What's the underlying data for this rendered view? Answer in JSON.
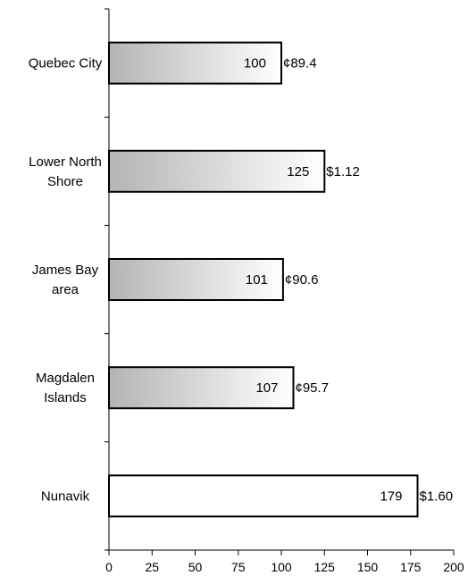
{
  "chart_data": {
    "type": "bar",
    "orientation": "horizontal",
    "categories": [
      "Quebec City",
      "Lower North Shore",
      "James Bay area",
      "Magdalen Islands",
      "Nunavik"
    ],
    "category_lines": [
      [
        "Quebec City"
      ],
      [
        "Lower North",
        "Shore"
      ],
      [
        "James Bay",
        "area"
      ],
      [
        "Magdalen",
        "Islands"
      ],
      [
        "Nunavik"
      ]
    ],
    "values": [
      100,
      125,
      101,
      107,
      179
    ],
    "value_labels": [
      "100",
      "125",
      "101",
      "107",
      "179"
    ],
    "price_labels": [
      "¢89.4",
      "$1.12",
      "¢90.6",
      "¢95.7",
      "$1.60"
    ],
    "bar_fill": [
      "gradient",
      "gradient",
      "gradient",
      "gradient",
      "white"
    ],
    "xlim": [
      0,
      200
    ],
    "x_ticks": [
      0,
      25,
      50,
      75,
      100,
      125,
      150,
      175,
      200
    ],
    "title": "",
    "xlabel": "",
    "ylabel": "",
    "grid": false,
    "colors": {
      "gradient_start": "#b4b4b4",
      "gradient_end": "#ffffff",
      "bar_stroke": "#000000",
      "axis": "#000000"
    }
  }
}
